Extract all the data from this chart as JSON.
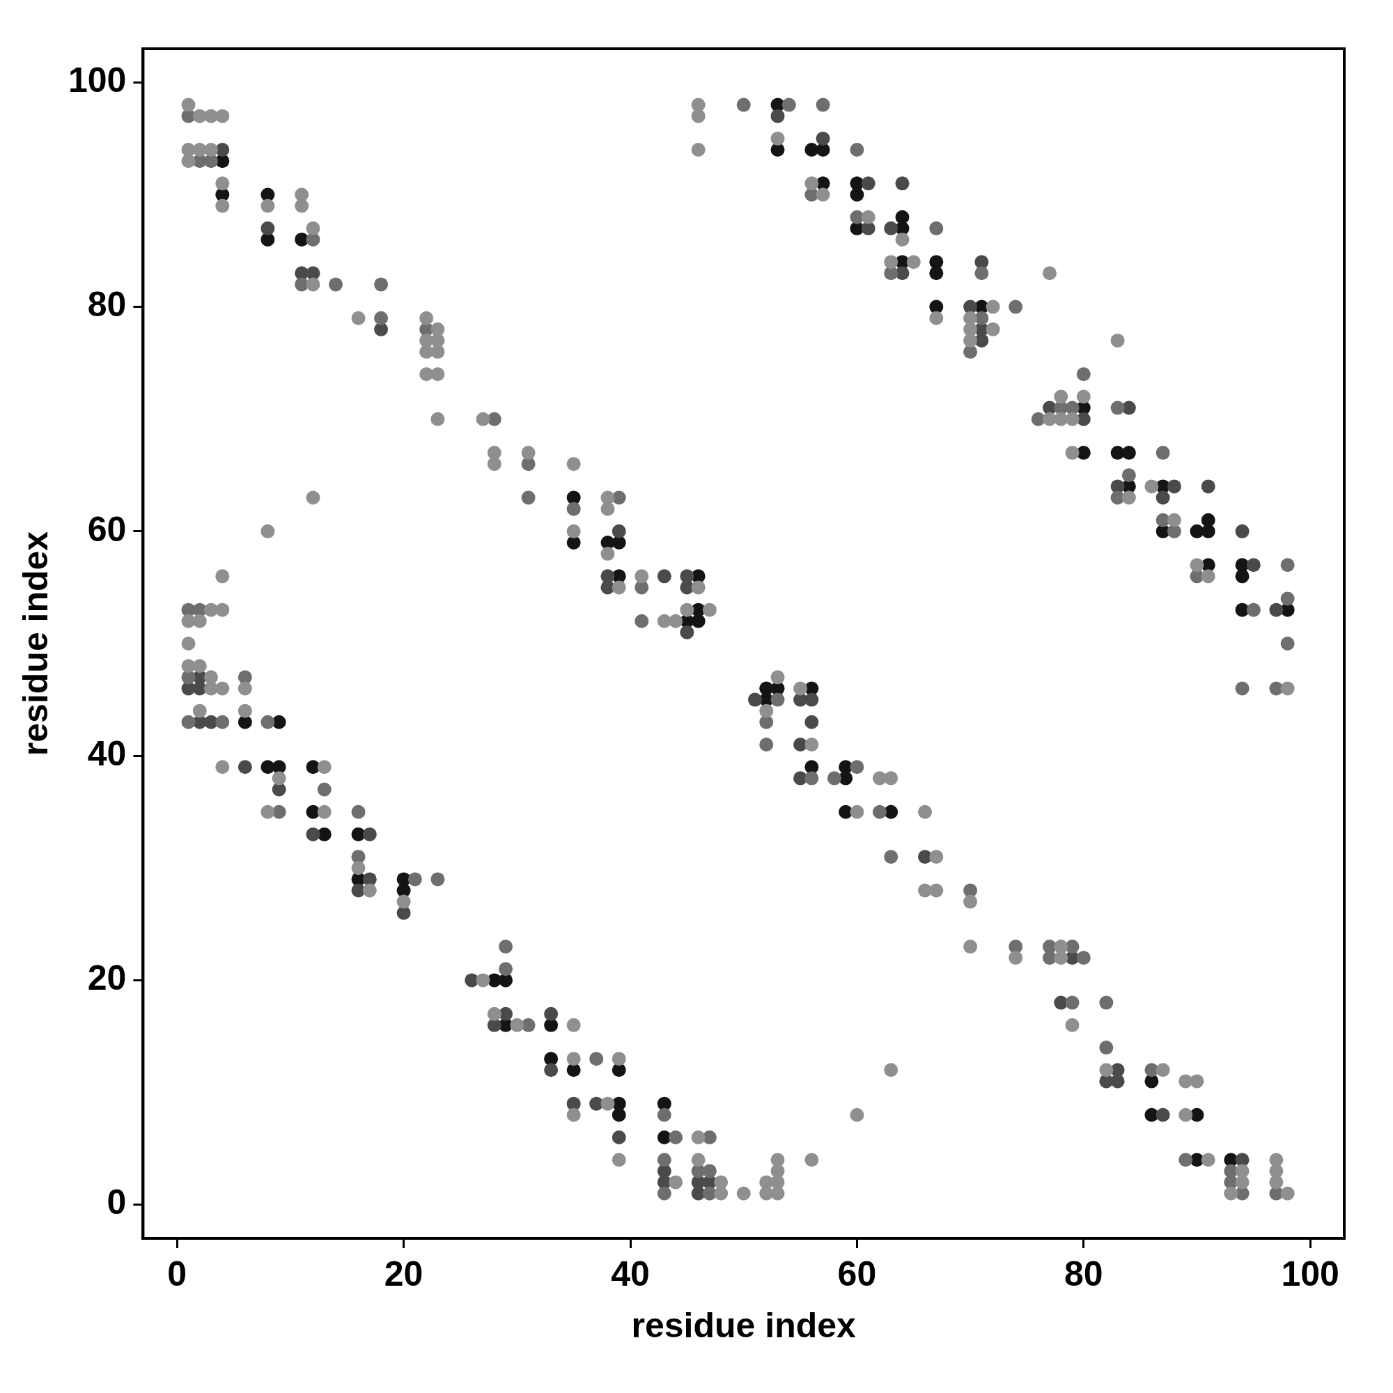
{
  "chart_data": {
    "type": "scatter",
    "xlabel": "residue index",
    "ylabel": "residue index",
    "xlim": [
      -3,
      103
    ],
    "ylim": [
      -3,
      103
    ],
    "xticks": [
      0,
      20,
      40,
      60,
      80,
      100
    ],
    "yticks": [
      0,
      20,
      40,
      60,
      80,
      100
    ],
    "marker": "circle",
    "series": [
      {
        "color": "#8f8f8f",
        "x": [
          1,
          2,
          3,
          4,
          1,
          2,
          3,
          1,
          4,
          4,
          8,
          11,
          11,
          12,
          12,
          16,
          22,
          23,
          22,
          23,
          22,
          23,
          22,
          23,
          23,
          27,
          28,
          31,
          28,
          35,
          35,
          12,
          8,
          38,
          38,
          38,
          41,
          39,
          46,
          45,
          47,
          43,
          44,
          46,
          46,
          53,
          46,
          56,
          57,
          61,
          64,
          63,
          65,
          67,
          70,
          70,
          70,
          72,
          72,
          77,
          83,
          78,
          80,
          77,
          78,
          79,
          79,
          84,
          86,
          88,
          90,
          91,
          98,
          4,
          3,
          4,
          1,
          2,
          1,
          1,
          2,
          3,
          3,
          4,
          6,
          2,
          6,
          4,
          13,
          9,
          8,
          13,
          16,
          17,
          20,
          27,
          28,
          30,
          35,
          53,
          55,
          52,
          56,
          62,
          63,
          60,
          66,
          67,
          66,
          67,
          70,
          70,
          35,
          39,
          38,
          35,
          63,
          60,
          46,
          39,
          46,
          53,
          56,
          53,
          44,
          48,
          52,
          53,
          48,
          50,
          52,
          53,
          78,
          74,
          78,
          79,
          82,
          87,
          89,
          90,
          89,
          91,
          97,
          94,
          97,
          94,
          97,
          93,
          98
        ],
        "values": [
          98,
          97,
          97,
          97,
          94,
          94,
          94,
          93,
          91,
          89,
          89,
          90,
          89,
          87,
          82,
          79,
          79,
          78,
          77,
          77,
          76,
          76,
          74,
          74,
          70,
          70,
          67,
          67,
          66,
          66,
          60,
          63,
          60,
          63,
          62,
          58,
          56,
          55,
          55,
          53,
          53,
          52,
          52,
          98,
          97,
          95,
          94,
          91,
          90,
          88,
          86,
          84,
          84,
          79,
          79,
          78,
          77,
          80,
          78,
          83,
          77,
          72,
          72,
          70,
          70,
          70,
          67,
          63,
          64,
          61,
          57,
          56,
          46,
          56,
          53,
          53,
          52,
          52,
          50,
          48,
          48,
          47,
          46,
          46,
          46,
          44,
          44,
          39,
          39,
          38,
          35,
          35,
          30,
          28,
          27,
          20,
          17,
          16,
          13,
          47,
          46,
          44,
          41,
          38,
          38,
          35,
          35,
          31,
          28,
          28,
          27,
          23,
          16,
          13,
          9,
          8,
          12,
          8,
          6,
          4,
          4,
          4,
          4,
          3,
          2,
          2,
          2,
          2,
          1,
          1,
          1,
          1,
          23,
          22,
          22,
          16,
          12,
          12,
          11,
          11,
          8,
          4,
          4,
          3,
          3,
          2,
          2,
          1,
          1
        ]
      },
      {
        "color": "#6e6e6e",
        "x": [
          1,
          2,
          3,
          12,
          11,
          14,
          18,
          18,
          22,
          28,
          31,
          35,
          31,
          39,
          41,
          41,
          50,
          54,
          57,
          60,
          56,
          60,
          67,
          63,
          71,
          74,
          71,
          70,
          80,
          78,
          79,
          83,
          76,
          87,
          84,
          83,
          87,
          88,
          90,
          98,
          98,
          95,
          98,
          94,
          97,
          1,
          2,
          1,
          6,
          1,
          4,
          8,
          13,
          9,
          16,
          16,
          21,
          23,
          29,
          29,
          31,
          52,
          52,
          60,
          56,
          58,
          62,
          63,
          70,
          53,
          37,
          43,
          44,
          47,
          43,
          46,
          47,
          43,
          47,
          74,
          77,
          79,
          77,
          80,
          79,
          82,
          82,
          86,
          89,
          93,
          93,
          94,
          97
        ],
        "values": [
          97,
          93,
          93,
          86,
          82,
          82,
          82,
          79,
          78,
          70,
          66,
          62,
          63,
          63,
          55,
          52,
          98,
          98,
          98,
          94,
          90,
          88,
          87,
          83,
          83,
          80,
          79,
          76,
          74,
          71,
          71,
          71,
          70,
          67,
          65,
          63,
          61,
          60,
          56,
          57,
          54,
          53,
          50,
          46,
          46,
          53,
          53,
          47,
          47,
          43,
          43,
          43,
          37,
          35,
          35,
          31,
          29,
          29,
          23,
          21,
          16,
          43,
          41,
          39,
          38,
          38,
          35,
          31,
          28,
          45,
          13,
          8,
          6,
          6,
          4,
          3,
          3,
          1,
          1,
          23,
          23,
          23,
          22,
          22,
          18,
          18,
          14,
          12,
          4,
          3,
          2,
          1,
          1
        ]
      },
      {
        "color": "#4a4a4a",
        "x": [
          4,
          8,
          11,
          12,
          18,
          38,
          43,
          45,
          45,
          38,
          39,
          45,
          53,
          57,
          61,
          64,
          61,
          63,
          64,
          70,
          71,
          71,
          71,
          77,
          84,
          80,
          83,
          88,
          91,
          87,
          94,
          95,
          97,
          1,
          2,
          2,
          2,
          3,
          6,
          9,
          12,
          17,
          17,
          16,
          20,
          26,
          29,
          28,
          51,
          55,
          56,
          56,
          55,
          55,
          66,
          33,
          35,
          37,
          39,
          43,
          43,
          46,
          47,
          46,
          78,
          79,
          83,
          82,
          83,
          87,
          94,
          33
        ],
        "values": [
          94,
          87,
          83,
          83,
          78,
          55,
          56,
          56,
          55,
          56,
          60,
          51,
          97,
          95,
          91,
          91,
          87,
          87,
          83,
          80,
          84,
          78,
          77,
          71,
          71,
          70,
          64,
          64,
          64,
          63,
          60,
          57,
          53,
          46,
          47,
          46,
          43,
          43,
          39,
          37,
          33,
          33,
          29,
          28,
          26,
          20,
          17,
          16,
          45,
          45,
          45,
          43,
          41,
          38,
          31,
          12,
          9,
          9,
          6,
          3,
          2,
          2,
          2,
          1,
          18,
          22,
          12,
          11,
          11,
          8,
          4,
          17
        ]
      },
      {
        "color": "#141414",
        "x": [
          4,
          4,
          8,
          8,
          11,
          35,
          35,
          38,
          39,
          39,
          46,
          46,
          45,
          46,
          53,
          53,
          56,
          57,
          57,
          60,
          60,
          60,
          64,
          64,
          64,
          67,
          67,
          67,
          71,
          80,
          80,
          83,
          84,
          84,
          87,
          90,
          91,
          91,
          91,
          94,
          94,
          94,
          98,
          87,
          6,
          9,
          8,
          9,
          12,
          12,
          13,
          16,
          16,
          20,
          20,
          28,
          29,
          29,
          33,
          52,
          53,
          56,
          52,
          56,
          59,
          59,
          59,
          63,
          35,
          39,
          33,
          39,
          43,
          39,
          43,
          86,
          86,
          90,
          90,
          93
        ],
        "values": [
          93,
          90,
          90,
          86,
          86,
          63,
          59,
          59,
          59,
          56,
          56,
          53,
          52,
          52,
          98,
          94,
          94,
          94,
          91,
          91,
          90,
          87,
          87,
          88,
          84,
          84,
          83,
          80,
          80,
          71,
          67,
          67,
          67,
          64,
          64,
          60,
          60,
          61,
          57,
          57,
          56,
          53,
          53,
          60,
          43,
          43,
          39,
          39,
          39,
          35,
          33,
          33,
          29,
          29,
          28,
          20,
          20,
          16,
          16,
          46,
          46,
          46,
          45,
          39,
          39,
          38,
          35,
          35,
          12,
          12,
          13,
          9,
          9,
          8,
          6,
          11,
          8,
          8,
          4,
          4
        ]
      }
    ]
  }
}
